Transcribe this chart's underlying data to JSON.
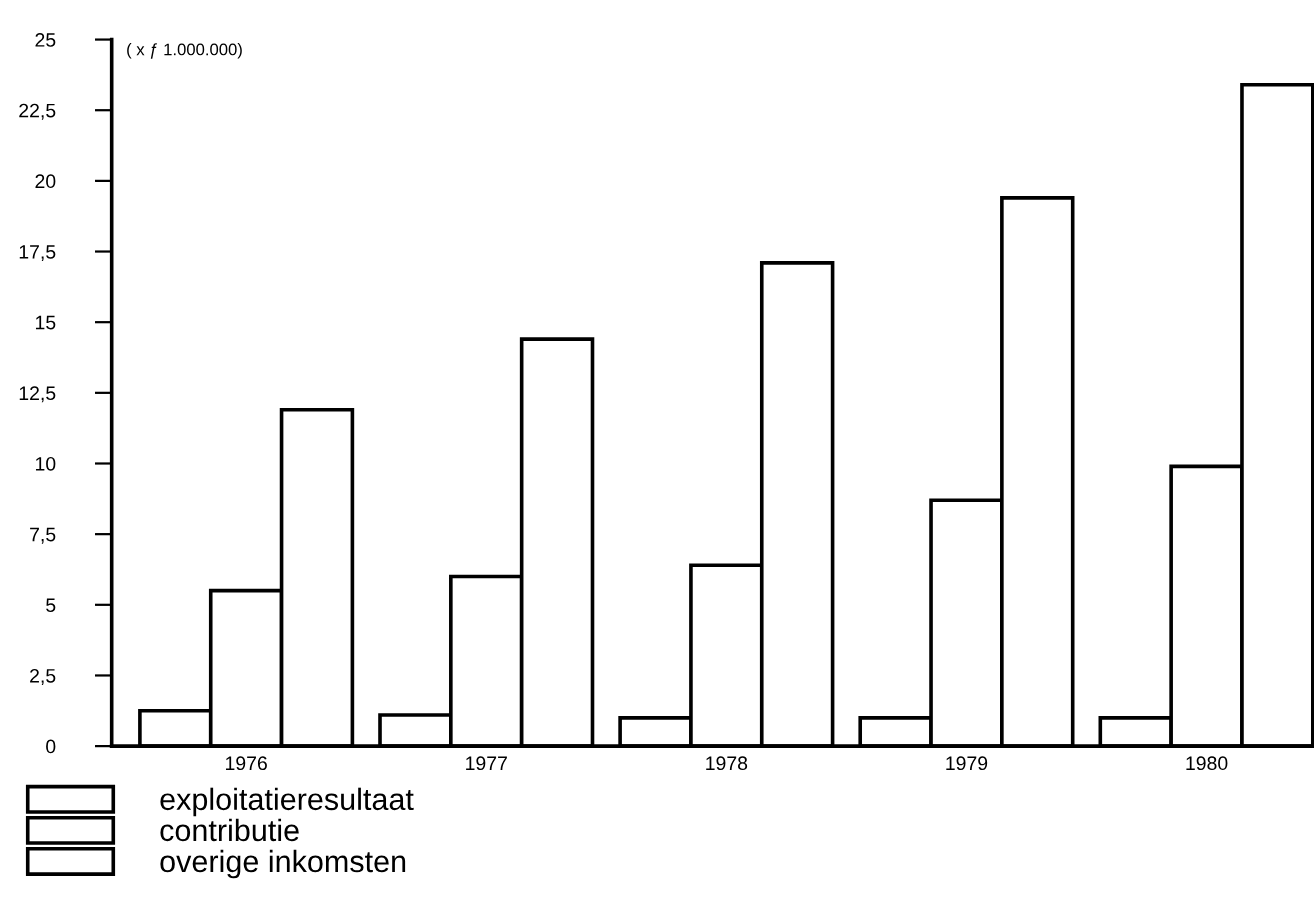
{
  "chart_data": {
    "type": "bar",
    "categories": [
      "1976",
      "1977",
      "1978",
      "1979",
      "1980"
    ],
    "series": [
      {
        "name": "exploitatieresultaat",
        "color": "#ffffff",
        "values": [
          1.25,
          1.1,
          1.0,
          1.0,
          1.0
        ]
      },
      {
        "name": "contributie",
        "color": "#ffffff",
        "values": [
          5.5,
          6.0,
          6.4,
          8.7,
          9.9
        ]
      },
      {
        "name": "overige inkomsten",
        "color": "#ffffff",
        "values": [
          11.9,
          14.4,
          17.1,
          19.4,
          23.4
        ]
      }
    ],
    "annotations": [
      "( x ƒ 1.000.000)"
    ],
    "ylim": [
      0,
      25
    ],
    "yticks": [
      0,
      {
        "value": 2.5,
        "label": "2,5"
      },
      5,
      {
        "value": 7.5,
        "label": "7,5"
      },
      10,
      {
        "value": 12.5,
        "label": "12,5"
      },
      15,
      {
        "value": 17.5,
        "label": "17,5"
      },
      20,
      {
        "value": 22.5,
        "label": "22,5"
      },
      25
    ],
    "grid": false,
    "legend": "bottom left"
  }
}
